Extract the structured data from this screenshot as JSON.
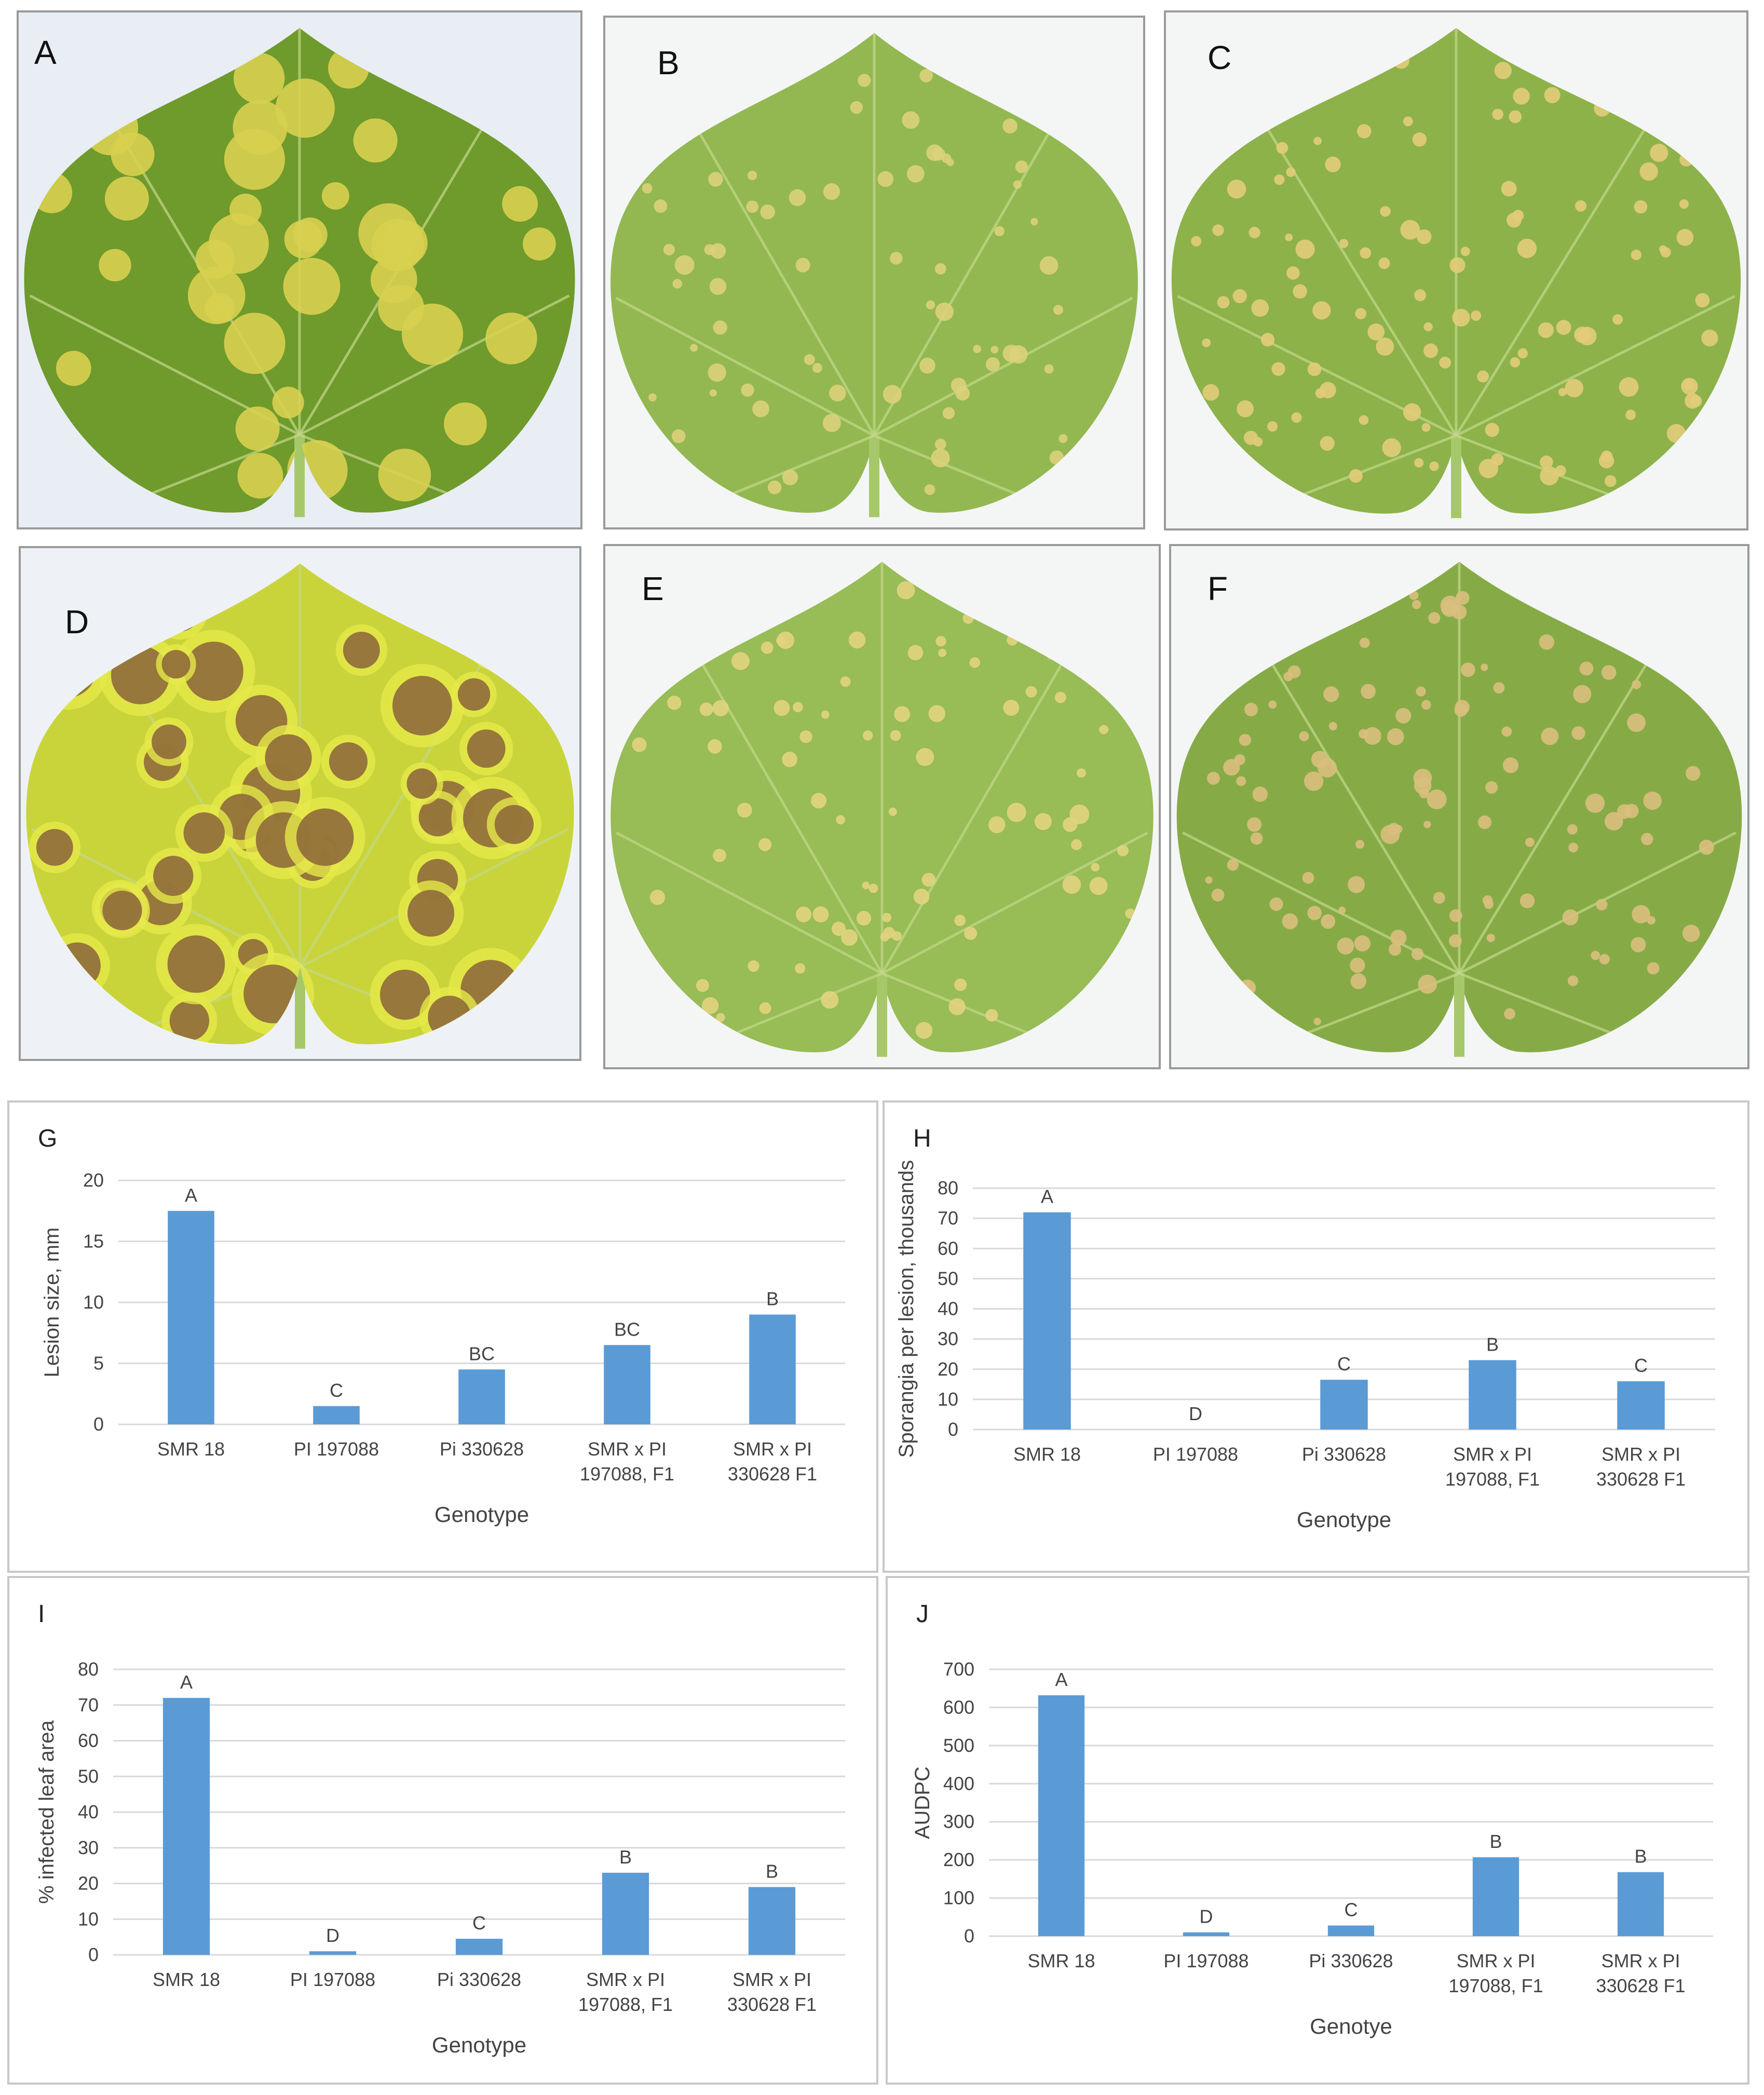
{
  "photo_panels": [
    {
      "label": "A",
      "leaf_color": "#6f9a2c",
      "lesion_color": "#d8d050",
      "lesion_count": 40,
      "bg": "#e8eef4"
    },
    {
      "label": "B",
      "leaf_color": "#93b852",
      "lesion_color": "#dcd27a",
      "lesion_count": 80,
      "bg": "#f4f6f6"
    },
    {
      "label": "C",
      "leaf_color": "#8db24a",
      "lesion_color": "#e2cc7a",
      "lesion_count": 120,
      "bg": "#f4f6f6"
    },
    {
      "label": "D",
      "leaf_color": "#c9d43a",
      "lesion_color": "#8f6a3a",
      "lesion_count": 45,
      "bg": "#eef2f6"
    },
    {
      "label": "E",
      "leaf_color": "#98bc56",
      "lesion_color": "#e2d382",
      "lesion_count": 90,
      "bg": "#f4f6f6"
    },
    {
      "label": "F",
      "leaf_color": "#86ab46",
      "lesion_color": "#d9bf7d",
      "lesion_count": 130,
      "bg": "#f4f6f6"
    }
  ],
  "chart_data": [
    {
      "panel_label": "G",
      "type": "bar",
      "categories": [
        [
          "SMR 18"
        ],
        [
          "PI 197088"
        ],
        [
          "Pi 330628"
        ],
        [
          "SMR x PI",
          "197088, F1"
        ],
        [
          "SMR x PI",
          "330628 F1"
        ]
      ],
      "values": [
        17.5,
        1.5,
        4.5,
        6.5,
        9.0
      ],
      "significance": [
        "A",
        "C",
        "BC",
        "BC",
        "B"
      ],
      "xlabel": "Genotype",
      "ylabel": "Lesion size, mm",
      "ylim": [
        0,
        20
      ],
      "yticks": [
        0,
        5,
        10,
        15,
        20
      ],
      "grid": true,
      "bar_color": "#5b9bd5"
    },
    {
      "panel_label": "H",
      "type": "bar",
      "categories": [
        [
          "SMR 18"
        ],
        [
          "PI 197088"
        ],
        [
          "Pi 330628"
        ],
        [
          "SMR x PI",
          "197088, F1"
        ],
        [
          "SMR x PI",
          "330628 F1"
        ]
      ],
      "values": [
        72,
        0,
        16.5,
        23,
        16
      ],
      "significance": [
        "A",
        "D",
        "C",
        "B",
        "C"
      ],
      "xlabel": "Genotype",
      "ylabel": "Sporangia per lesion, thousands",
      "ylim": [
        0,
        80
      ],
      "yticks": [
        0,
        10,
        20,
        30,
        40,
        50,
        60,
        70,
        80
      ],
      "grid": true,
      "bar_color": "#5b9bd5"
    },
    {
      "panel_label": "I",
      "type": "bar",
      "categories": [
        [
          "SMR 18"
        ],
        [
          "PI 197088"
        ],
        [
          "Pi 330628"
        ],
        [
          "SMR x PI",
          "197088, F1"
        ],
        [
          "SMR x PI",
          "330628 F1"
        ]
      ],
      "values": [
        72,
        1,
        4.5,
        23,
        19
      ],
      "significance": [
        "A",
        "D",
        "C",
        "B",
        "B"
      ],
      "xlabel": "Genotype",
      "ylabel": "% infected leaf area",
      "ylim": [
        0,
        80
      ],
      "yticks": [
        0,
        10,
        20,
        30,
        40,
        50,
        60,
        70,
        80
      ],
      "grid": true,
      "bar_color": "#5b9bd5"
    },
    {
      "panel_label": "J",
      "type": "bar",
      "categories": [
        [
          "SMR 18"
        ],
        [
          "PI 197088"
        ],
        [
          "Pi 330628"
        ],
        [
          "SMR x PI",
          "197088, F1"
        ],
        [
          "SMR x PI",
          "330628 F1"
        ]
      ],
      "values": [
        632,
        10,
        28,
        207,
        168
      ],
      "significance": [
        "A",
        "D",
        "C",
        "B",
        "B"
      ],
      "xlabel": "Genotye",
      "ylabel": "AUDPC",
      "ylim": [
        0,
        700
      ],
      "yticks": [
        0,
        100,
        200,
        300,
        400,
        500,
        600,
        700
      ],
      "grid": true,
      "bar_color": "#5b9bd5"
    }
  ]
}
